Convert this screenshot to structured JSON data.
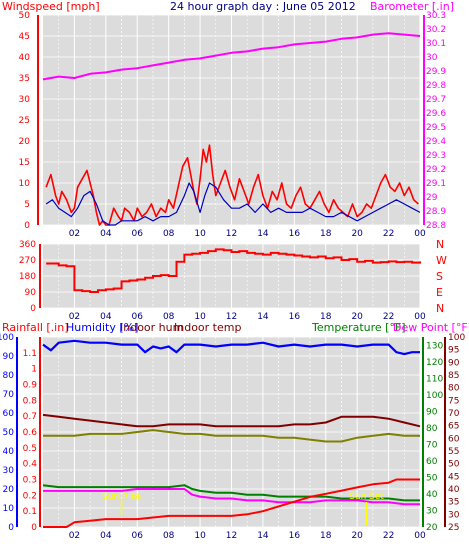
{
  "header": {
    "title": "24 hour graph day : June 05 2012",
    "windspeed_label": "Windspeed [mph]",
    "barometer_label": "Barometer [.in]"
  },
  "colors": {
    "background": "#ffffff",
    "plot_bg": "#dcdcdc",
    "grid": "#ffffff",
    "windspeed": "#ff0000",
    "windspeed_avg": "#0000c0",
    "barometer": "#ff00ff",
    "wind_direction": "#ff0000",
    "rainfall": "#ff0000",
    "humidity": "#0000ff",
    "indoor_hum": "#800000",
    "indoor_temp": "#808000",
    "temperature": "#008000",
    "dew_point": "#ff00ff",
    "sun_marker": "#ffff00",
    "title": "#000080"
  },
  "x_ticks": [
    "02",
    "04",
    "06",
    "08",
    "10",
    "12",
    "14",
    "16",
    "18",
    "20",
    "22",
    "00"
  ],
  "chart_data": [
    {
      "type": "line",
      "panel": "wind_barometer",
      "title": "24 hour graph day : June 05 2012",
      "xlabel": "",
      "x_range_hours": [
        0,
        24
      ],
      "left_axis": {
        "label": "Windspeed [mph]",
        "ylim": [
          0,
          50
        ],
        "ticks": [
          "0",
          "5",
          "10",
          "15",
          "20",
          "25",
          "30",
          "35",
          "40",
          "45",
          "50"
        ]
      },
      "right_axis": {
        "label": "Barometer [.in]",
        "ylim": [
          28.8,
          30.3
        ],
        "ticks": [
          "28.8",
          "28.9",
          "29",
          "29.1",
          "29.2",
          "29.3",
          "29.4",
          "29.5",
          "29.6",
          "29.7",
          "29.8",
          "29.9",
          "30",
          "30.1",
          "30.2",
          "30.3"
        ]
      },
      "series": [
        {
          "id": "windspeed",
          "axis": "left",
          "x": [
            0.2,
            0.5,
            0.8,
            1.0,
            1.2,
            1.5,
            1.8,
            2.0,
            2.2,
            2.5,
            2.8,
            3.0,
            3.2,
            3.4,
            3.6,
            3.8,
            4.0,
            4.2,
            4.5,
            4.8,
            5.0,
            5.2,
            5.5,
            5.8,
            6.0,
            6.3,
            6.6,
            6.9,
            7.2,
            7.5,
            7.8,
            8.0,
            8.3,
            8.6,
            8.9,
            9.2,
            9.4,
            9.6,
            9.8,
            10.0,
            10.2,
            10.4,
            10.6,
            10.8,
            11.0,
            11.3,
            11.6,
            11.9,
            12.2,
            12.5,
            12.8,
            13.1,
            13.4,
            13.7,
            14.0,
            14.3,
            14.6,
            14.9,
            15.2,
            15.5,
            15.8,
            16.1,
            16.4,
            16.7,
            17.0,
            17.3,
            17.6,
            17.9,
            18.2,
            18.5,
            18.8,
            19.1,
            19.4,
            19.7,
            20.0,
            20.3,
            20.6,
            20.9,
            21.2,
            21.5,
            21.8,
            22.1,
            22.4,
            22.7,
            23.0,
            23.3,
            23.6,
            23.9
          ],
          "y": [
            9,
            12,
            7,
            5,
            8,
            6,
            3,
            4,
            9,
            11,
            13,
            10,
            7,
            3,
            0,
            1,
            0,
            0,
            4,
            2,
            1,
            4,
            3,
            1,
            4,
            2,
            3,
            5,
            2,
            4,
            3,
            6,
            4,
            9,
            14,
            16,
            12,
            8,
            5,
            11,
            18,
            15,
            19,
            12,
            7,
            10,
            13,
            9,
            6,
            11,
            8,
            5,
            9,
            12,
            7,
            4,
            8,
            6,
            10,
            5,
            4,
            7,
            9,
            5,
            4,
            6,
            8,
            5,
            3,
            6,
            4,
            3,
            2,
            5,
            2,
            3,
            5,
            4,
            7,
            10,
            12,
            9,
            8,
            10,
            7,
            9,
            6,
            5
          ]
        },
        {
          "id": "windspeed_avg",
          "axis": "left",
          "x": [
            0.2,
            0.6,
            1.0,
            1.4,
            1.8,
            2.2,
            2.6,
            3.0,
            3.4,
            3.8,
            4.2,
            4.6,
            5.0,
            5.5,
            6.0,
            6.5,
            7.0,
            7.5,
            8.0,
            8.5,
            9.0,
            9.3,
            9.6,
            10.0,
            10.3,
            10.6,
            11.0,
            11.5,
            12.0,
            12.5,
            13.0,
            13.5,
            14.0,
            14.5,
            15.0,
            15.5,
            16.0,
            16.5,
            17.0,
            17.5,
            18.0,
            18.5,
            19.0,
            19.5,
            20.0,
            20.5,
            21.0,
            21.5,
            22.0,
            22.5,
            23.0,
            23.5,
            24.0
          ],
          "y": [
            5,
            6,
            4,
            3,
            2,
            4,
            7,
            8,
            5,
            1,
            0,
            0,
            1,
            1,
            1,
            2,
            1,
            2,
            2,
            3,
            7,
            10,
            8,
            3,
            7,
            10,
            9,
            6,
            4,
            4,
            5,
            3,
            5,
            3,
            4,
            3,
            3,
            3,
            4,
            3,
            2,
            2,
            3,
            2,
            1,
            2,
            3,
            4,
            5,
            6,
            5,
            4,
            3
          ]
        },
        {
          "id": "barometer",
          "axis": "right",
          "x": [
            0,
            1,
            2,
            3,
            4,
            5,
            6,
            7,
            8,
            9,
            10,
            11,
            12,
            13,
            14,
            15,
            16,
            17,
            18,
            19,
            20,
            21,
            22,
            23,
            24
          ],
          "y": [
            29.84,
            29.86,
            29.85,
            29.88,
            29.89,
            29.91,
            29.92,
            29.94,
            29.96,
            29.98,
            29.99,
            30.01,
            30.03,
            30.04,
            30.06,
            30.07,
            30.09,
            30.1,
            30.11,
            30.13,
            30.14,
            30.16,
            30.17,
            30.16,
            30.15
          ]
        }
      ]
    },
    {
      "type": "line",
      "panel": "wind_direction",
      "x_range_hours": [
        0,
        24
      ],
      "left_axis": {
        "ylim": [
          0,
          360
        ],
        "ticks": [
          "0",
          "90",
          "180",
          "270",
          "360"
        ]
      },
      "right_axis": {
        "labels": [
          "N",
          "W",
          "S",
          "E",
          "N"
        ]
      },
      "series": [
        {
          "id": "wind_direction",
          "axis": "left",
          "x": [
            0.2,
            1.0,
            1.5,
            2.0,
            2.5,
            3.0,
            3.5,
            4.0,
            4.5,
            5.0,
            5.5,
            6.0,
            6.5,
            7.0,
            7.5,
            8.0,
            8.5,
            9.0,
            9.5,
            10.0,
            10.5,
            11.0,
            11.5,
            12.0,
            12.5,
            13.0,
            13.5,
            14.0,
            14.5,
            15.0,
            15.5,
            16.0,
            16.5,
            17.0,
            17.5,
            18.0,
            18.5,
            19.0,
            19.5,
            20.0,
            20.5,
            21.0,
            21.5,
            22.0,
            22.5,
            23.0,
            23.5,
            24.0
          ],
          "y": [
            250,
            240,
            235,
            100,
            95,
            90,
            100,
            105,
            110,
            150,
            155,
            160,
            170,
            180,
            185,
            180,
            260,
            300,
            305,
            310,
            320,
            330,
            325,
            315,
            320,
            310,
            305,
            300,
            310,
            305,
            300,
            295,
            290,
            285,
            290,
            280,
            285,
            270,
            275,
            260,
            265,
            255,
            258,
            262,
            258,
            260,
            255,
            262
          ]
        }
      ]
    },
    {
      "type": "line",
      "panel": "temp_humidity_rain",
      "x_range_hours": [
        0,
        24
      ],
      "rainfall_axis": {
        "label": "Rainfall [.in]",
        "ylim": [
          0,
          1.2
        ],
        "ticks": [
          "0",
          "0.1",
          "0.2",
          "0.3",
          "0.4",
          "0.5",
          "0.6",
          "0.7",
          "0.8",
          "0.9",
          "1",
          "1.1"
        ]
      },
      "humidity_axis": {
        "label": "Humidity [%]",
        "ylim": [
          0,
          100
        ],
        "ticks": [
          "0",
          "10",
          "20",
          "30",
          "40",
          "50",
          "60",
          "70",
          "80",
          "90",
          "100"
        ]
      },
      "temp_axis_left": {
        "label": "Indoor temp",
        "ylim": [
          20,
          135
        ],
        "ticks": [
          "20",
          "30",
          "40",
          "50",
          "60",
          "70",
          "80",
          "90",
          "100",
          "110",
          "120",
          "130"
        ]
      },
      "temp_axis_right": {
        "label": "Dew Point [°F]",
        "ylim": [
          25,
          100
        ],
        "ticks": [
          "25",
          "30",
          "35",
          "40",
          "45",
          "50",
          "55",
          "60",
          "65",
          "70",
          "75",
          "80",
          "85",
          "90",
          "95",
          "100"
        ]
      },
      "legend": [
        "Rainfall [.in]",
        "Humidity [%]",
        "Indoor hum",
        "Indoor temp",
        "Temperature [°F]",
        "Dew Point [°F]"
      ],
      "annotations": [
        "Sun Rise",
        "Sun Set"
      ],
      "series": [
        {
          "id": "humidity",
          "axis": "humidity",
          "x": [
            0,
            0.5,
            1,
            2,
            3,
            4,
            5,
            6,
            6.5,
            7,
            7.5,
            8,
            8.5,
            9,
            10,
            11,
            12,
            13,
            14,
            15,
            16,
            17,
            18,
            19,
            20,
            21,
            22,
            22.5,
            23,
            23.5,
            24
          ],
          "y": [
            96,
            93,
            97,
            98,
            97,
            97,
            96,
            96,
            92,
            95,
            94,
            95,
            92,
            96,
            96,
            95,
            96,
            96,
            97,
            95,
            96,
            95,
            96,
            96,
            95,
            96,
            96,
            92,
            91,
            92,
            92
          ]
        },
        {
          "id": "indoor_hum",
          "axis": "humidity",
          "x": [
            0,
            1,
            2,
            3,
            4,
            5,
            6,
            7,
            8,
            9,
            10,
            11,
            12,
            13,
            14,
            15,
            16,
            17,
            18,
            19,
            20,
            21,
            22,
            23,
            24
          ],
          "y": [
            59,
            58,
            57,
            56,
            55,
            54,
            53,
            53,
            54,
            54,
            54,
            53,
            53,
            53,
            53,
            53,
            54,
            54,
            55,
            58,
            58,
            58,
            57,
            55,
            53
          ]
        },
        {
          "id": "indoor_temp",
          "axis": "humidity",
          "x": [
            0,
            1,
            2,
            3,
            4,
            5,
            6,
            7,
            8,
            9,
            10,
            11,
            12,
            13,
            14,
            15,
            16,
            17,
            18,
            19,
            20,
            21,
            22,
            23,
            24
          ],
          "y": [
            48,
            48,
            48,
            49,
            49,
            49,
            50,
            51,
            50,
            49,
            49,
            48,
            48,
            48,
            48,
            47,
            47,
            46,
            45,
            45,
            47,
            48,
            49,
            48,
            48
          ]
        },
        {
          "id": "temperature",
          "axis": "humidity",
          "x": [
            0,
            1,
            2,
            3,
            4,
            5,
            6,
            7,
            8,
            9,
            9.5,
            10,
            11,
            12,
            13,
            14,
            15,
            16,
            17,
            18,
            19,
            20,
            21,
            22,
            23,
            24
          ],
          "y": [
            22,
            21,
            21,
            21,
            21,
            21,
            21,
            21,
            21,
            22,
            20,
            19,
            18,
            18,
            17,
            17,
            16,
            16,
            16,
            16,
            15,
            15,
            15,
            15,
            14,
            14
          ]
        },
        {
          "id": "dew_point",
          "axis": "humidity",
          "x": [
            0,
            1,
            2,
            3,
            4,
            5,
            6,
            7,
            8,
            9,
            9.5,
            10,
            11,
            12,
            13,
            14,
            15,
            16,
            17,
            18,
            19,
            20,
            21,
            22,
            23,
            24
          ],
          "y": [
            19,
            19,
            19,
            19,
            19,
            19,
            20,
            20,
            20,
            20,
            17,
            16,
            15,
            15,
            14,
            14,
            13,
            13,
            13,
            14,
            14,
            14,
            13,
            13,
            12,
            12
          ]
        },
        {
          "id": "rainfall",
          "axis": "rainfall",
          "x": [
            0,
            1.5,
            2,
            3,
            4,
            5,
            6,
            7,
            8,
            9,
            10,
            11,
            12,
            13,
            14,
            15,
            16,
            17,
            18,
            19,
            20,
            21,
            22,
            22.5,
            23,
            24
          ],
          "y": [
            0,
            0,
            0.03,
            0.04,
            0.05,
            0.05,
            0.05,
            0.06,
            0.07,
            0.07,
            0.07,
            0.07,
            0.07,
            0.08,
            0.1,
            0.13,
            0.16,
            0.19,
            0.21,
            0.23,
            0.25,
            0.27,
            0.28,
            0.3,
            0.3,
            0.3
          ]
        }
      ]
    }
  ]
}
